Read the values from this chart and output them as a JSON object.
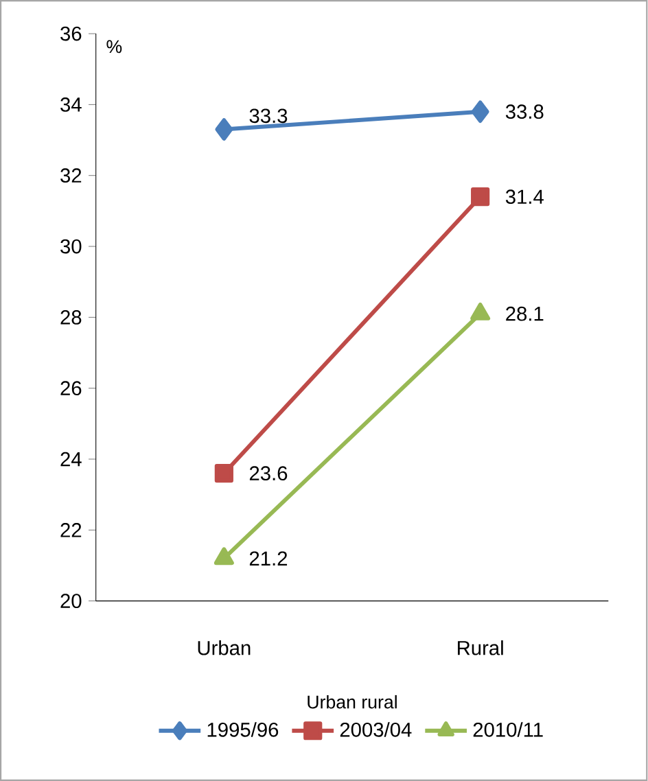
{
  "chart_data": {
    "type": "line",
    "xlabel": "Urban rural",
    "ylabel": "%",
    "categories": [
      "Urban",
      "Rural"
    ],
    "series": [
      {
        "name": "1995/96",
        "color": "#4a7ebb",
        "marker": "diamond",
        "values": [
          33.3,
          33.8
        ]
      },
      {
        "name": "2003/04",
        "color": "#be4b48",
        "marker": "square",
        "values": [
          23.6,
          31.4
        ]
      },
      {
        "name": "2010/11",
        "color": "#98b954",
        "marker": "triangle",
        "values": [
          21.2,
          28.1
        ]
      }
    ],
    "ylim": [
      20,
      36
    ],
    "yticks": [
      20,
      22,
      24,
      26,
      28,
      30,
      32,
      34,
      36
    ],
    "grid": false,
    "legend": "bottom",
    "data_labels": true,
    "line_style": "solid"
  }
}
